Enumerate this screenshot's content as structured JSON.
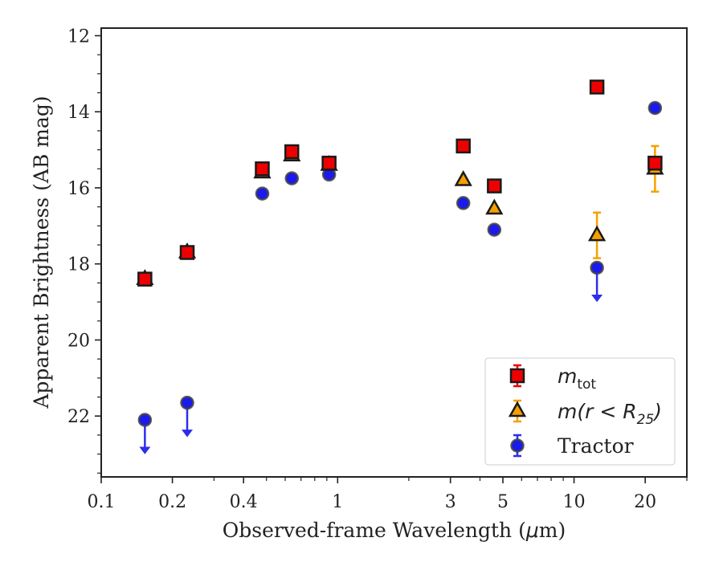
{
  "chart_data": {
    "type": "scatter",
    "xlabel_prefix": "Observed-frame Wavelength (",
    "xlabel_unit": "μ",
    "xlabel_suffix": "m)",
    "ylabel": "Apparent Brightness (AB mag)",
    "xscale": "log",
    "xlim": [
      0.1,
      30
    ],
    "ylim": [
      23.6,
      11.8
    ],
    "y_inverted": true,
    "x_ticks": [
      0.1,
      0.2,
      0.4,
      1,
      3,
      5,
      10,
      20
    ],
    "x_tick_labels": [
      "0.1",
      "0.2",
      "0.4",
      "1",
      "3",
      "5",
      "10",
      "20"
    ],
    "y_ticks": [
      12,
      14,
      16,
      18,
      20,
      22
    ],
    "y_tick_labels": [
      "12",
      "14",
      "16",
      "18",
      "20",
      "22"
    ],
    "legend_position": "lower-right",
    "legend": [
      {
        "key": "mtot",
        "label_main": "m",
        "label_sub": "tot"
      },
      {
        "key": "mr25",
        "label_main": "m(r < R",
        "label_sub": "25",
        "label_tail": ")"
      },
      {
        "key": "tractor",
        "label_main": "Tractor"
      }
    ],
    "series": [
      {
        "key": "mtot",
        "marker": "square",
        "color": "#ee0000",
        "edge": "#1a1a1a",
        "points": [
          {
            "x": 0.153,
            "y": 18.4,
            "err": 0.05
          },
          {
            "x": 0.231,
            "y": 17.7,
            "err": 0.05
          },
          {
            "x": 0.48,
            "y": 15.5,
            "err": 0.1
          },
          {
            "x": 0.64,
            "y": 15.05,
            "err": 0.1
          },
          {
            "x": 0.92,
            "y": 15.35,
            "err": 0.1
          },
          {
            "x": 3.4,
            "y": 14.9,
            "err": 0.05
          },
          {
            "x": 4.6,
            "y": 15.95,
            "err": 0.05
          },
          {
            "x": 12.5,
            "y": 13.35,
            "err": 0.05
          },
          {
            "x": 22.0,
            "y": 15.35,
            "err": 0.05
          }
        ]
      },
      {
        "key": "mr25",
        "marker": "triangle",
        "color": "#f5a000",
        "edge": "#1a1a1a",
        "points": [
          {
            "x": 0.153,
            "y": 18.4,
            "err": 0.05
          },
          {
            "x": 0.231,
            "y": 17.7,
            "err": 0.05
          },
          {
            "x": 0.48,
            "y": 15.6,
            "err": 0.1
          },
          {
            "x": 0.64,
            "y": 15.15,
            "err": 0.1
          },
          {
            "x": 0.92,
            "y": 15.4,
            "err": 0.1
          },
          {
            "x": 3.4,
            "y": 15.8,
            "err": 0.05
          },
          {
            "x": 4.6,
            "y": 16.55,
            "err": 0.05
          },
          {
            "x": 12.5,
            "y": 17.25,
            "err": 0.6
          },
          {
            "x": 22.0,
            "y": 15.5,
            "err": 0.6
          }
        ]
      },
      {
        "key": "tractor",
        "marker": "circle",
        "color": "#1a1aee",
        "edge": "#444444",
        "points": [
          {
            "x": 0.153,
            "y": 22.1,
            "upper_limit": true
          },
          {
            "x": 0.231,
            "y": 21.65,
            "upper_limit": true
          },
          {
            "x": 0.48,
            "y": 16.15,
            "err": 0.05
          },
          {
            "x": 0.64,
            "y": 15.75,
            "err": 0.05
          },
          {
            "x": 0.92,
            "y": 15.65,
            "err": 0.05
          },
          {
            "x": 3.4,
            "y": 16.4,
            "err": 0.05
          },
          {
            "x": 4.6,
            "y": 17.1,
            "err": 0.05
          },
          {
            "x": 12.5,
            "y": 18.1,
            "upper_limit": true
          },
          {
            "x": 22.0,
            "y": 13.9,
            "err": 0.05
          }
        ]
      }
    ]
  }
}
